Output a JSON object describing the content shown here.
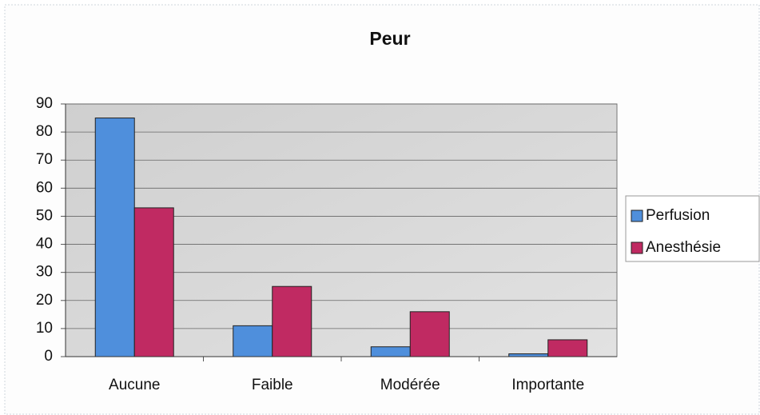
{
  "chart_data": {
    "type": "bar",
    "title": "Peur",
    "categories": [
      "Aucune",
      "Faible",
      "Modérée",
      "Importante"
    ],
    "series": [
      {
        "name": "Perfusion",
        "color": "#4f8fdc",
        "values": [
          85,
          11,
          3.5,
          1
        ]
      },
      {
        "name": "Anesthésie",
        "color": "#c02a62",
        "values": [
          53,
          25,
          16,
          6
        ]
      }
    ],
    "ylim": [
      0,
      90
    ],
    "yticks": [
      0,
      10,
      20,
      30,
      40,
      50,
      60,
      70,
      80,
      90
    ],
    "grid": true,
    "legend": "right"
  }
}
